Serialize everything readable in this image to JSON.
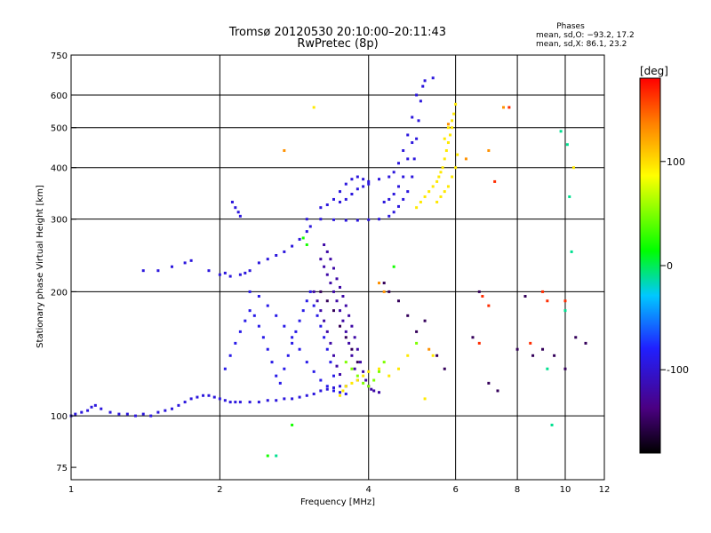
{
  "chart_data": {
    "type": "scatter",
    "title": "Tromsø 20120530 20:10:00–20:11:43",
    "subtitle": "RwPretec (8p)",
    "xlabel": "Frequency [MHz]",
    "ylabel": "Stationary phase Virtual Height [km]",
    "x_scale": "log",
    "y_scale": "log",
    "xlim": [
      1,
      12
    ],
    "ylim": [
      70,
      750
    ],
    "x_ticks": [
      1,
      2,
      4,
      6,
      8,
      10,
      12
    ],
    "x_tick_labels": [
      "1",
      "2",
      "4",
      "6",
      "8",
      "10",
      "12"
    ],
    "x_grid": [
      1,
      2,
      4,
      6,
      8,
      10,
      12
    ],
    "y_ticks": [
      75,
      100,
      200,
      300,
      400,
      500,
      600,
      750
    ],
    "y_tick_labels": [
      "75",
      "100",
      "200",
      "300",
      "400",
      "500",
      "600",
      "750"
    ],
    "y_grid": [
      100,
      200,
      300,
      400,
      500,
      600,
      750
    ],
    "grid": true,
    "phases": {
      "title": "Phases",
      "line_o": "mean, sd,O: −93.2, 17.2",
      "line_x": "mean, sd,X:  86.1, 23.2"
    },
    "colorbar": {
      "label": "[deg]",
      "range": [
        -180,
        180
      ],
      "ticks": [
        100,
        0,
        -100
      ],
      "tick_labels": [
        "100",
        "0",
        "-100"
      ]
    },
    "series": [
      {
        "phase": -95,
        "points": [
          [
            1.0,
            100
          ],
          [
            1.02,
            101
          ],
          [
            1.05,
            102
          ],
          [
            1.08,
            103
          ],
          [
            1.1,
            105
          ],
          [
            1.12,
            106
          ],
          [
            1.15,
            104
          ],
          [
            1.2,
            102
          ],
          [
            1.25,
            101
          ],
          [
            1.3,
            101
          ],
          [
            1.35,
            100
          ],
          [
            1.4,
            101
          ],
          [
            1.45,
            100
          ],
          [
            1.5,
            102
          ],
          [
            1.55,
            103
          ],
          [
            1.6,
            104
          ],
          [
            1.65,
            106
          ],
          [
            1.7,
            108
          ],
          [
            1.75,
            110
          ],
          [
            1.8,
            111
          ],
          [
            1.85,
            112
          ],
          [
            1.9,
            112
          ],
          [
            1.95,
            111
          ],
          [
            2.0,
            110
          ],
          [
            2.05,
            109
          ],
          [
            2.1,
            108
          ],
          [
            2.15,
            108
          ],
          [
            2.2,
            108
          ],
          [
            2.3,
            108
          ],
          [
            2.4,
            108
          ],
          [
            2.5,
            109
          ],
          [
            2.6,
            109
          ],
          [
            2.7,
            110
          ],
          [
            2.8,
            110
          ],
          [
            2.9,
            111
          ],
          [
            3.0,
            112
          ],
          [
            3.1,
            113
          ],
          [
            3.2,
            115
          ],
          [
            3.3,
            116
          ],
          [
            3.4,
            117
          ],
          [
            3.5,
            118
          ],
          [
            3.6,
            118
          ],
          [
            1.4,
            225
          ],
          [
            1.5,
            225
          ],
          [
            1.6,
            230
          ],
          [
            1.7,
            235
          ],
          [
            1.75,
            238
          ],
          [
            1.9,
            225
          ],
          [
            2.0,
            220
          ],
          [
            2.05,
            222
          ],
          [
            2.1,
            218
          ],
          [
            2.2,
            220
          ],
          [
            2.25,
            222
          ],
          [
            2.3,
            225
          ],
          [
            2.4,
            235
          ],
          [
            2.5,
            240
          ],
          [
            2.6,
            245
          ],
          [
            2.7,
            250
          ],
          [
            2.8,
            258
          ],
          [
            2.9,
            268
          ],
          [
            3.0,
            280
          ],
          [
            3.05,
            288
          ],
          [
            2.12,
            330
          ],
          [
            2.15,
            320
          ],
          [
            2.18,
            312
          ],
          [
            2.2,
            305
          ],
          [
            3.0,
            300
          ],
          [
            3.2,
            300
          ],
          [
            3.4,
            299
          ],
          [
            3.6,
            298
          ],
          [
            3.8,
            298
          ],
          [
            4.0,
            299
          ],
          [
            4.2,
            300
          ],
          [
            4.4,
            305
          ],
          [
            4.5,
            312
          ],
          [
            4.6,
            322
          ],
          [
            4.7,
            335
          ],
          [
            4.8,
            350
          ],
          [
            4.9,
            380
          ],
          [
            4.95,
            420
          ],
          [
            5.0,
            470
          ],
          [
            5.05,
            520
          ],
          [
            5.1,
            580
          ],
          [
            5.15,
            630
          ],
          [
            3.5,
            330
          ],
          [
            3.6,
            335
          ],
          [
            3.7,
            345
          ],
          [
            3.8,
            355
          ],
          [
            3.9,
            360
          ],
          [
            4.0,
            365
          ],
          [
            3.2,
            320
          ],
          [
            3.3,
            325
          ],
          [
            3.4,
            335
          ],
          [
            3.5,
            350
          ],
          [
            3.6,
            365
          ],
          [
            3.7,
            375
          ],
          [
            3.8,
            380
          ],
          [
            3.9,
            375
          ],
          [
            4.0,
            370
          ],
          [
            4.2,
            375
          ],
          [
            4.4,
            380
          ],
          [
            4.5,
            390
          ],
          [
            4.6,
            410
          ],
          [
            4.7,
            440
          ],
          [
            4.8,
            480
          ],
          [
            4.9,
            530
          ],
          [
            5.0,
            600
          ],
          [
            4.3,
            330
          ],
          [
            4.4,
            335
          ],
          [
            4.5,
            345
          ],
          [
            4.6,
            360
          ],
          [
            4.7,
            380
          ],
          [
            4.8,
            420
          ],
          [
            4.9,
            460
          ],
          [
            5.2,
            650
          ],
          [
            5.4,
            660
          ]
        ]
      },
      {
        "phase": -90,
        "points": [
          [
            2.05,
            130
          ],
          [
            2.1,
            140
          ],
          [
            2.15,
            150
          ],
          [
            2.2,
            160
          ],
          [
            2.25,
            170
          ],
          [
            2.3,
            180
          ],
          [
            2.35,
            175
          ],
          [
            2.4,
            165
          ],
          [
            2.45,
            155
          ],
          [
            2.5,
            145
          ],
          [
            2.55,
            135
          ],
          [
            2.6,
            125
          ],
          [
            2.65,
            120
          ],
          [
            2.7,
            130
          ],
          [
            2.75,
            140
          ],
          [
            2.8,
            150
          ],
          [
            2.85,
            160
          ],
          [
            2.9,
            170
          ],
          [
            2.95,
            180
          ],
          [
            3.0,
            190
          ],
          [
            3.05,
            200
          ],
          [
            3.1,
            185
          ],
          [
            3.15,
            175
          ],
          [
            3.2,
            165
          ],
          [
            3.25,
            155
          ],
          [
            3.3,
            145
          ],
          [
            3.35,
            135
          ],
          [
            3.4,
            125
          ],
          [
            2.3,
            200
          ],
          [
            2.4,
            195
          ],
          [
            2.5,
            185
          ],
          [
            2.6,
            175
          ],
          [
            2.7,
            165
          ],
          [
            2.8,
            155
          ],
          [
            2.9,
            145
          ],
          [
            3.0,
            135
          ],
          [
            3.1,
            128
          ],
          [
            3.2,
            122
          ],
          [
            3.3,
            118
          ],
          [
            3.4,
            115
          ],
          [
            3.5,
            114
          ],
          [
            3.6,
            113
          ]
        ]
      },
      {
        "phase": -120,
        "points": [
          [
            3.2,
            240
          ],
          [
            3.25,
            230
          ],
          [
            3.3,
            220
          ],
          [
            3.35,
            210
          ],
          [
            3.4,
            200
          ],
          [
            3.45,
            190
          ],
          [
            3.5,
            180
          ],
          [
            3.55,
            170
          ],
          [
            3.6,
            160
          ],
          [
            3.65,
            150
          ],
          [
            3.7,
            140
          ],
          [
            3.75,
            130
          ],
          [
            3.8,
            122
          ],
          [
            3.25,
            260
          ],
          [
            3.3,
            250
          ],
          [
            3.35,
            240
          ],
          [
            3.4,
            228
          ],
          [
            3.45,
            215
          ],
          [
            3.5,
            205
          ],
          [
            3.55,
            195
          ],
          [
            3.6,
            185
          ],
          [
            3.65,
            175
          ],
          [
            3.7,
            165
          ],
          [
            3.75,
            155
          ],
          [
            3.8,
            145
          ],
          [
            3.85,
            135
          ],
          [
            3.9,
            128
          ],
          [
            3.95,
            122
          ],
          [
            4.0,
            118
          ],
          [
            4.05,
            116
          ],
          [
            4.1,
            115
          ],
          [
            4.2,
            114
          ],
          [
            3.1,
            200
          ],
          [
            3.15,
            190
          ],
          [
            3.2,
            180
          ],
          [
            3.25,
            170
          ],
          [
            3.3,
            160
          ],
          [
            3.35,
            150
          ],
          [
            3.4,
            140
          ],
          [
            3.45,
            132
          ],
          [
            3.5,
            126
          ]
        ]
      },
      {
        "phase": 20,
        "points": [
          [
            2.8,
            95
          ],
          [
            2.95,
            270
          ],
          [
            3.0,
            260
          ],
          [
            2.5,
            80
          ],
          [
            4.5,
            230
          ]
        ]
      },
      {
        "phase": 50,
        "points": [
          [
            3.6,
            135
          ],
          [
            3.7,
            130
          ],
          [
            3.8,
            125
          ],
          [
            3.9,
            120
          ],
          [
            4.0,
            118
          ],
          [
            4.1,
            122
          ],
          [
            4.2,
            128
          ],
          [
            4.3,
            135
          ],
          [
            5.0,
            150
          ]
        ]
      },
      {
        "phase": 95,
        "points": [
          [
            3.5,
            112
          ],
          [
            3.55,
            115
          ],
          [
            3.6,
            118
          ],
          [
            3.7,
            120
          ],
          [
            3.8,
            122
          ],
          [
            3.9,
            125
          ],
          [
            4.0,
            128
          ],
          [
            4.2,
            130
          ],
          [
            4.4,
            125
          ],
          [
            4.6,
            130
          ],
          [
            4.8,
            140
          ],
          [
            5.0,
            320
          ],
          [
            5.1,
            330
          ],
          [
            5.2,
            340
          ],
          [
            5.3,
            350
          ],
          [
            5.4,
            360
          ],
          [
            5.5,
            370
          ],
          [
            5.55,
            380
          ],
          [
            5.6,
            390
          ],
          [
            5.65,
            400
          ],
          [
            5.7,
            420
          ],
          [
            5.75,
            440
          ],
          [
            5.8,
            460
          ],
          [
            5.85,
            480
          ],
          [
            5.9,
            500
          ],
          [
            5.95,
            540
          ],
          [
            6.0,
            570
          ],
          [
            5.5,
            330
          ],
          [
            5.6,
            340
          ],
          [
            5.7,
            350
          ],
          [
            5.8,
            360
          ],
          [
            5.9,
            380
          ],
          [
            6.0,
            400
          ],
          [
            6.05,
            430
          ],
          [
            5.7,
            470
          ],
          [
            5.8,
            500
          ],
          [
            5.9,
            520
          ],
          [
            3.1,
            560
          ],
          [
            5.2,
            110
          ],
          [
            5.4,
            140
          ],
          [
            10.4,
            400
          ]
        ]
      },
      {
        "phase": 130,
        "points": [
          [
            2.7,
            440
          ],
          [
            4.2,
            210
          ],
          [
            4.3,
            200
          ],
          [
            5.3,
            145
          ],
          [
            5.8,
            510
          ],
          [
            6.3,
            420
          ],
          [
            7.0,
            440
          ],
          [
            7.5,
            560
          ]
        ]
      },
      {
        "phase": 165,
        "points": [
          [
            7.2,
            370
          ],
          [
            6.8,
            195
          ],
          [
            7.0,
            185
          ],
          [
            6.7,
            150
          ],
          [
            9.0,
            200
          ],
          [
            9.2,
            190
          ],
          [
            10.0,
            190
          ],
          [
            7.7,
            560
          ],
          [
            8.5,
            150
          ]
        ]
      },
      {
        "phase": -150,
        "points": [
          [
            3.2,
            200
          ],
          [
            3.3,
            190
          ],
          [
            3.4,
            180
          ],
          [
            3.5,
            165
          ],
          [
            3.6,
            155
          ],
          [
            3.7,
            145
          ],
          [
            3.8,
            135
          ],
          [
            4.3,
            210
          ],
          [
            4.4,
            200
          ],
          [
            4.6,
            190
          ],
          [
            4.8,
            175
          ],
          [
            5.0,
            160
          ],
          [
            5.2,
            170
          ],
          [
            5.5,
            140
          ],
          [
            5.7,
            130
          ],
          [
            6.5,
            155
          ],
          [
            7.0,
            120
          ],
          [
            7.3,
            115
          ],
          [
            8.0,
            145
          ],
          [
            8.6,
            140
          ],
          [
            9.0,
            145
          ],
          [
            9.5,
            140
          ],
          [
            10.0,
            130
          ],
          [
            10.5,
            155
          ],
          [
            11.0,
            150
          ],
          [
            8.3,
            195
          ],
          [
            6.7,
            200
          ]
        ]
      },
      {
        "phase": -10,
        "points": [
          [
            9.2,
            130
          ],
          [
            9.8,
            490
          ],
          [
            10.1,
            455
          ],
          [
            10.2,
            340
          ],
          [
            9.4,
            95
          ],
          [
            10.0,
            180
          ],
          [
            2.6,
            80
          ],
          [
            10.3,
            250
          ]
        ]
      }
    ]
  }
}
